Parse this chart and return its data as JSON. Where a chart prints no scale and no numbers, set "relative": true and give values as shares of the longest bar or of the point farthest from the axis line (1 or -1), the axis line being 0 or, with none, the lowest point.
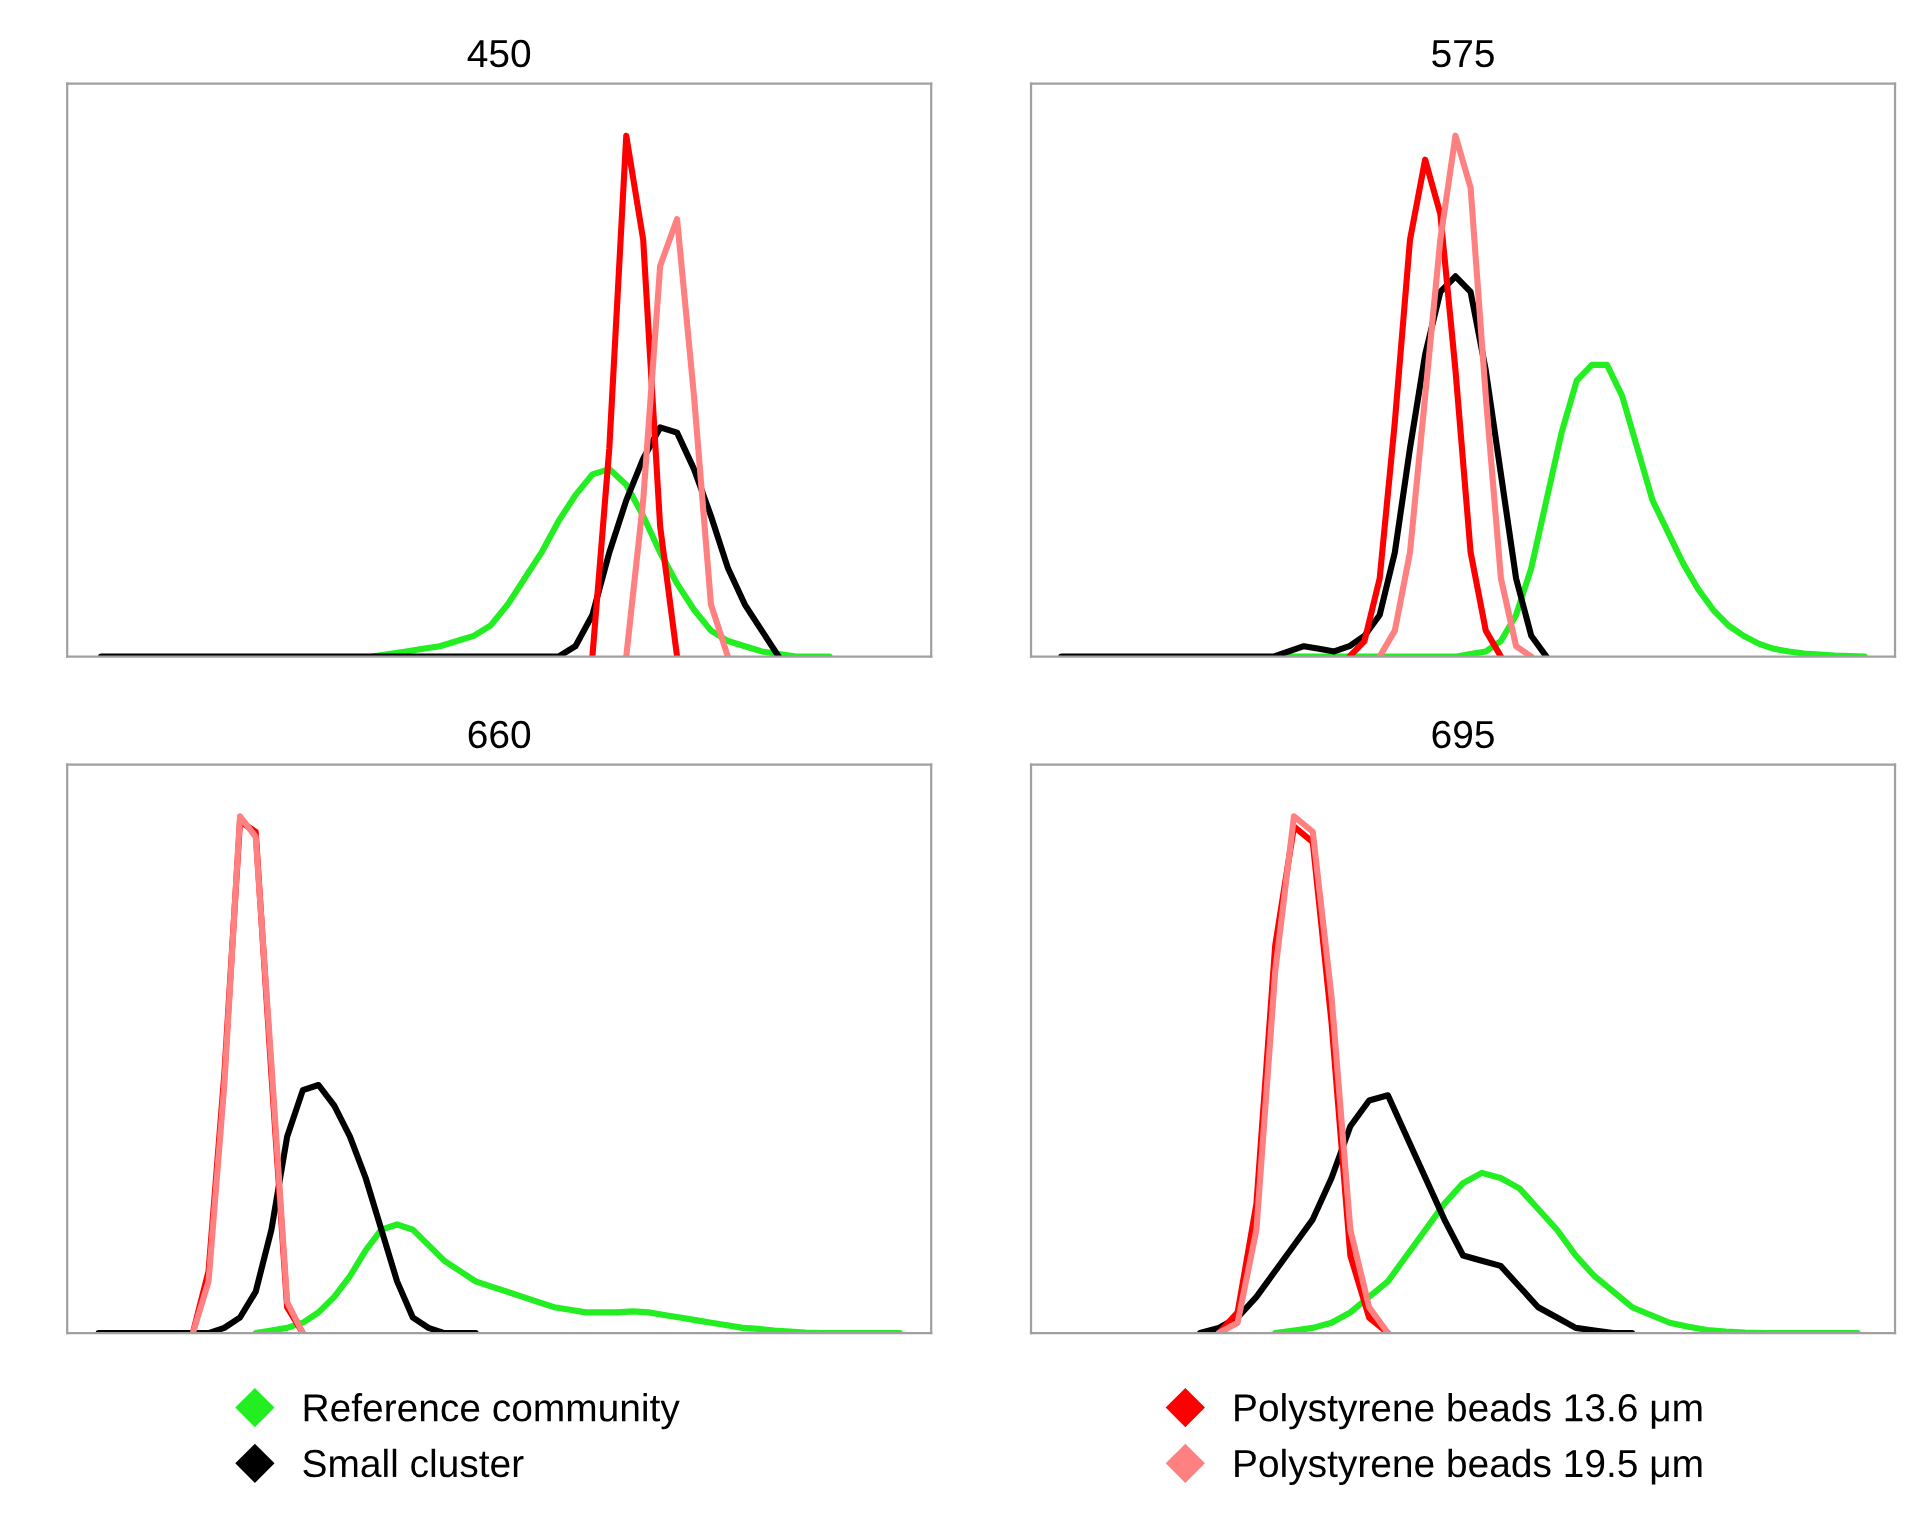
{
  "chart_data": [
    {
      "type": "line",
      "title": "450",
      "relative": true,
      "legend": "bottom",
      "categories": [
        null,
        null,
        null,
        null,
        null,
        null,
        null,
        null,
        null,
        null,
        null,
        null,
        null,
        null,
        null,
        null,
        null,
        null,
        null,
        null,
        null,
        null,
        null,
        null,
        null,
        null,
        null,
        null,
        null,
        null,
        null,
        null,
        null,
        null,
        null,
        null,
        null,
        null,
        null,
        null,
        null,
        null,
        null,
        null,
        null,
        null,
        null,
        null
      ],
      "series": [
        {
          "name": "Reference community",
          "color": "#22ee22",
          "values": [
            null,
            null,
            null,
            null,
            null,
            null,
            null,
            null,
            null,
            null,
            null,
            null,
            null,
            null,
            null,
            null,
            0,
            0.005,
            0.01,
            0.015,
            0.02,
            0.03,
            0.04,
            0.06,
            0.1,
            0.15,
            0.2,
            0.26,
            0.31,
            0.35,
            0.36,
            0.33,
            0.27,
            0.2,
            0.14,
            0.09,
            0.05,
            0.03,
            0.02,
            0.01,
            0.005,
            0,
            0,
            0,
            null,
            null,
            null,
            null
          ]
        },
        {
          "name": "Small cluster",
          "color": "#000000",
          "values": [
            0,
            0,
            0,
            0,
            0,
            0,
            0,
            0,
            0,
            0,
            0,
            0,
            0,
            0,
            0,
            0,
            0,
            0,
            0,
            0,
            0,
            0,
            0,
            0,
            0,
            0,
            0,
            0,
            0.02,
            0.08,
            0.2,
            0.3,
            0.38,
            0.44,
            0.43,
            0.36,
            0.27,
            0.17,
            0.1,
            0.05,
            0,
            null,
            null,
            null,
            null,
            null,
            null,
            null
          ]
        },
        {
          "name": "Polystyrene beads 13.6 μm",
          "color": "#ff0000",
          "values": [
            null,
            null,
            null,
            null,
            null,
            null,
            null,
            null,
            null,
            null,
            null,
            null,
            null,
            null,
            null,
            null,
            null,
            null,
            null,
            null,
            null,
            null,
            null,
            null,
            null,
            null,
            null,
            null,
            null,
            0,
            0.4,
            1.0,
            0.8,
            0.25,
            0,
            null,
            null,
            null,
            null,
            null,
            null,
            null,
            null,
            null,
            null,
            null,
            null,
            null
          ]
        },
        {
          "name": "Polystyrene beads 19.5 μm",
          "color": "#ff8080",
          "values": [
            null,
            null,
            null,
            null,
            null,
            null,
            null,
            null,
            null,
            null,
            null,
            null,
            null,
            null,
            null,
            null,
            null,
            null,
            null,
            null,
            null,
            null,
            null,
            null,
            null,
            null,
            null,
            null,
            null,
            null,
            null,
            0,
            0.3,
            0.75,
            0.84,
            0.5,
            0.1,
            0,
            null,
            null,
            null,
            null,
            null,
            null,
            null,
            null,
            null,
            null
          ]
        }
      ]
    },
    {
      "type": "line",
      "title": "575",
      "relative": true,
      "categories": [
        null,
        null,
        null,
        null,
        null,
        null,
        null,
        null,
        null,
        null,
        null,
        null,
        null,
        null,
        null,
        null,
        null,
        null,
        null,
        null,
        null,
        null,
        null,
        null,
        null,
        null,
        null,
        null,
        null,
        null,
        null,
        null,
        null,
        null,
        null,
        null,
        null,
        null,
        null,
        null,
        null,
        null,
        null,
        null,
        null,
        null,
        null,
        null,
        null,
        null,
        null,
        null,
        null,
        null
      ],
      "series": [
        {
          "color": "#22ee22",
          "values": [
            null,
            null,
            null,
            null,
            null,
            null,
            null,
            null,
            null,
            null,
            null,
            null,
            null,
            null,
            null,
            0,
            0,
            0,
            0,
            0,
            0,
            0,
            0,
            0,
            0,
            0,
            0,
            0.005,
            0.01,
            0.03,
            0.08,
            0.17,
            0.3,
            0.43,
            0.53,
            0.56,
            0.56,
            0.5,
            0.4,
            0.3,
            0.24,
            0.18,
            0.13,
            0.09,
            0.06,
            0.04,
            0.025,
            0.015,
            0.01,
            0.006,
            0.004,
            0.002,
            0.001,
            0
          ]
        },
        {
          "color": "#000000",
          "values": [
            0,
            0,
            0,
            0,
            0,
            0,
            0,
            0,
            0,
            0,
            0,
            0,
            0,
            0,
            0,
            0.01,
            0.02,
            0.015,
            0.01,
            0.02,
            0.04,
            0.08,
            0.2,
            0.4,
            0.58,
            0.7,
            0.73,
            0.7,
            0.55,
            0.35,
            0.15,
            0.04,
            0,
            null,
            null,
            null,
            null,
            null,
            null,
            null,
            null,
            null,
            null,
            null,
            null,
            null,
            null,
            null,
            null,
            null,
            null,
            null,
            null,
            null
          ]
        },
        {
          "color": "#ff0000",
          "values": [
            null,
            null,
            null,
            null,
            null,
            null,
            null,
            null,
            null,
            null,
            null,
            null,
            null,
            null,
            null,
            null,
            null,
            null,
            null,
            0,
            0.03,
            0.15,
            0.45,
            0.8,
            0.954,
            0.85,
            0.55,
            0.2,
            0.05,
            0,
            null,
            null,
            null,
            null,
            null,
            null,
            null,
            null,
            null,
            null,
            null,
            null,
            null,
            null,
            null,
            null,
            null,
            null,
            null,
            null,
            null,
            null,
            null,
            null
          ]
        },
        {
          "color": "#ff8080",
          "values": [
            null,
            null,
            null,
            null,
            null,
            null,
            null,
            null,
            null,
            null,
            null,
            null,
            null,
            null,
            null,
            null,
            null,
            null,
            null,
            null,
            null,
            0,
            0.05,
            0.2,
            0.5,
            0.8,
            1.0,
            0.9,
            0.5,
            0.15,
            0.02,
            0,
            null,
            null,
            null,
            null,
            null,
            null,
            null,
            null,
            null,
            null,
            null,
            null,
            null,
            null,
            null,
            null,
            null,
            null,
            null,
            null,
            null,
            null
          ]
        }
      ]
    },
    {
      "type": "line",
      "title": "660",
      "relative": true,
      "categories": [
        null,
        null,
        null,
        null,
        null,
        null,
        null,
        null,
        null,
        null,
        null,
        null,
        null,
        null,
        null,
        null,
        null,
        null,
        null,
        null,
        null,
        null,
        null,
        null,
        null,
        null,
        null,
        null,
        null,
        null,
        null,
        null,
        null,
        null,
        null,
        null,
        null,
        null,
        null,
        null,
        null,
        null,
        null,
        null,
        null,
        null,
        null,
        null,
        null,
        null,
        null,
        null
      ],
      "series": [
        {
          "color": "#22ee22",
          "values": [
            null,
            null,
            null,
            null,
            null,
            null,
            null,
            null,
            null,
            null,
            0,
            0.005,
            0.01,
            0.02,
            0.04,
            0.07,
            0.11,
            0.16,
            0.2,
            0.21,
            0.2,
            0.17,
            0.14,
            0.12,
            0.1,
            0.09,
            0.08,
            0.07,
            0.06,
            0.05,
            0.045,
            0.04,
            0.04,
            0.04,
            0.042,
            0.04,
            0.035,
            0.03,
            0.025,
            0.02,
            0.015,
            0.01,
            0.008,
            0.005,
            0.003,
            0.001,
            0,
            0,
            0,
            0,
            0,
            0
          ]
        },
        {
          "color": "#000000",
          "values": [
            0,
            0,
            0,
            0,
            0,
            0,
            0,
            0,
            0.01,
            0.03,
            0.08,
            0.2,
            0.38,
            0.47,
            0.48,
            0.44,
            0.38,
            0.3,
            0.2,
            0.1,
            0.03,
            0.01,
            0,
            0,
            0,
            null,
            null,
            null,
            null,
            null,
            null,
            null,
            null,
            null,
            null,
            null,
            null,
            null,
            null,
            null,
            null,
            null,
            null,
            null,
            null,
            null,
            null,
            null,
            null,
            null,
            null,
            null
          ]
        },
        {
          "color": "#ff0000",
          "values": [
            null,
            null,
            null,
            null,
            null,
            null,
            0,
            0.12,
            0.5,
            0.99,
            0.97,
            0.5,
            0.05,
            0,
            null,
            null,
            null,
            null,
            null,
            null,
            null,
            null,
            null,
            null,
            null,
            null,
            null,
            null,
            null,
            null,
            null,
            null,
            null,
            null,
            null,
            null,
            null,
            null,
            null,
            null,
            null,
            null,
            null,
            null,
            null,
            null,
            null,
            null,
            null,
            null,
            null,
            null
          ]
        },
        {
          "color": "#ff8080",
          "values": [
            null,
            null,
            null,
            null,
            null,
            null,
            0,
            0.1,
            0.48,
            1.0,
            0.96,
            0.52,
            0.06,
            0,
            null,
            null,
            null,
            null,
            null,
            null,
            null,
            null,
            null,
            null,
            null,
            null,
            null,
            null,
            null,
            null,
            null,
            null,
            null,
            null,
            null,
            null,
            null,
            null,
            null,
            null,
            null,
            null,
            null,
            null,
            null,
            null,
            null,
            null,
            null,
            null,
            null,
            null
          ]
        }
      ]
    },
    {
      "type": "line",
      "title": "695",
      "relative": true,
      "categories": [
        null,
        null,
        null,
        null,
        null,
        null,
        null,
        null,
        null,
        null,
        null,
        null,
        null,
        null,
        null,
        null,
        null,
        null,
        null,
        null,
        null,
        null,
        null,
        null,
        null,
        null,
        null,
        null,
        null,
        null,
        null,
        null,
        null,
        null,
        null,
        null,
        null,
        null,
        null,
        null,
        null,
        null,
        null
      ],
      "series": [
        {
          "color": "#22ee22",
          "values": [
            null,
            null,
            null,
            null,
            null,
            null,
            null,
            null,
            null,
            null,
            null,
            0,
            0.005,
            0.01,
            0.02,
            0.04,
            0.07,
            0.1,
            0.15,
            0.2,
            0.25,
            0.29,
            0.31,
            0.3,
            0.28,
            0.24,
            0.2,
            0.15,
            0.11,
            0.08,
            0.05,
            0.035,
            0.02,
            0.012,
            0.006,
            0.003,
            0.001,
            0,
            0,
            0,
            0,
            0,
            0
          ]
        },
        {
          "color": "#000000",
          "values": [
            null,
            null,
            null,
            null,
            null,
            null,
            null,
            0,
            0.01,
            0.03,
            0.07,
            0.12,
            0.17,
            0.22,
            0.3,
            0.4,
            0.45,
            0.46,
            0.38,
            0.3,
            0.22,
            0.15,
            0.14,
            0.13,
            0.09,
            0.05,
            0.03,
            0.01,
            0.005,
            0,
            0,
            null,
            null,
            null,
            null,
            null,
            null,
            null,
            null,
            null,
            null,
            null,
            null
          ]
        },
        {
          "color": "#ff0000",
          "values": [
            null,
            null,
            null,
            null,
            null,
            null,
            null,
            null,
            0,
            0.04,
            0.25,
            0.75,
            0.98,
            0.95,
            0.6,
            0.15,
            0.03,
            0,
            null,
            null,
            null,
            null,
            null,
            null,
            null,
            null,
            null,
            null,
            null,
            null,
            null,
            null,
            null,
            null,
            null,
            null,
            null,
            null,
            null,
            null,
            null,
            null,
            null
          ]
        },
        {
          "color": "#ff8080",
          "values": [
            null,
            null,
            null,
            null,
            null,
            null,
            null,
            null,
            0,
            0.02,
            0.2,
            0.7,
            1.0,
            0.97,
            0.65,
            0.2,
            0.05,
            0,
            null,
            null,
            null,
            null,
            null,
            null,
            null,
            null,
            null,
            null,
            null,
            null,
            null,
            null,
            null,
            null,
            null,
            null,
            null,
            null,
            null,
            null,
            null,
            null,
            null
          ]
        }
      ]
    }
  ]
}
